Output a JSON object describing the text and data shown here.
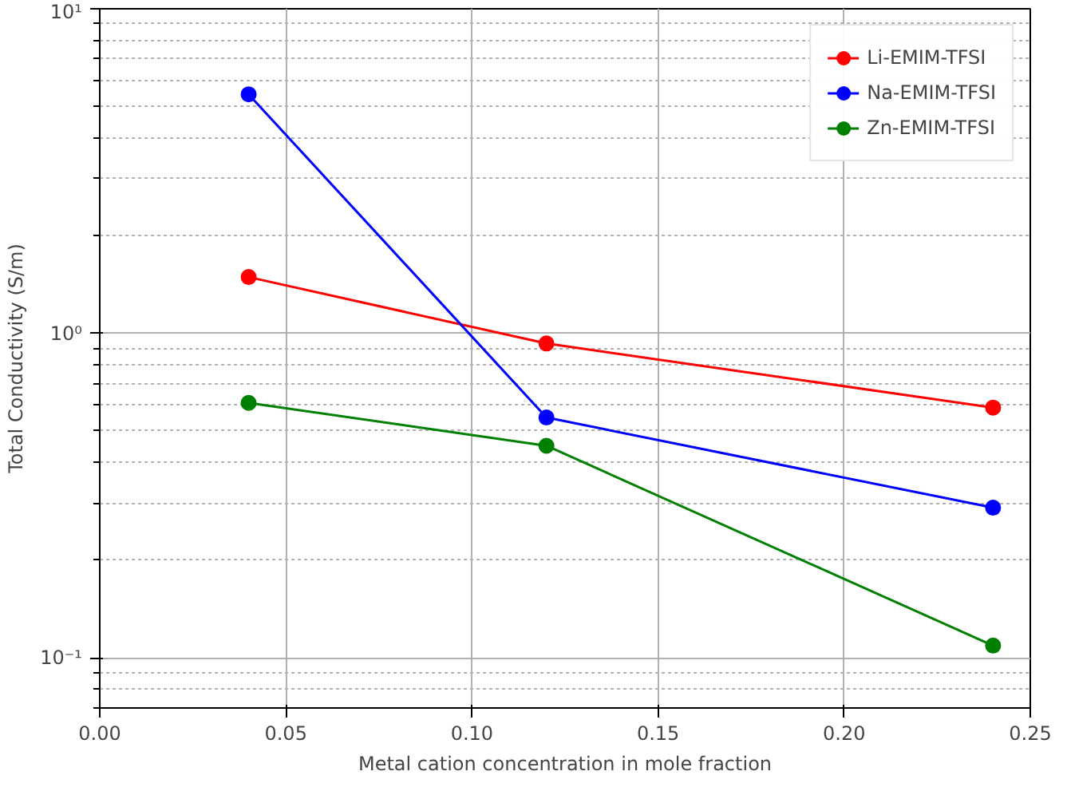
{
  "chart_data": {
    "type": "line",
    "xlabel": "Metal cation concentration in mole fraction",
    "ylabel": "Total Conductivity (S/m)",
    "x": [
      0.04,
      0.12,
      0.24
    ],
    "series": [
      {
        "name": "Li-EMIM-TFSI",
        "color": "#ff0000",
        "values": [
          1.49,
          0.93,
          0.59
        ]
      },
      {
        "name": "Na-EMIM-TFSI",
        "color": "#0000ff",
        "values": [
          5.45,
          0.55,
          0.29
        ]
      },
      {
        "name": "Zn-EMIM-TFSI",
        "color": "#008000",
        "values": [
          0.61,
          0.45,
          0.109
        ]
      }
    ],
    "xlim": [
      0.0,
      0.25
    ],
    "xticks": [
      {
        "value": 0,
        "label": "0.00"
      },
      {
        "value": 0.05,
        "label": "0.05"
      },
      {
        "value": 0.1,
        "label": "0.10"
      },
      {
        "value": 0.15,
        "label": "0.15"
      },
      {
        "value": 0.2,
        "label": "0.20"
      },
      {
        "value": 0.25,
        "label": "0.25"
      }
    ],
    "ylim": [
      0.07,
      10
    ],
    "yticks": [
      {
        "value": 0.1,
        "label": "10⁻¹"
      },
      {
        "value": 1,
        "label": "10⁰"
      },
      {
        "value": 10,
        "label": "10¹"
      }
    ],
    "log": "y",
    "grid": true,
    "legend": "top right",
    "marker": "circle",
    "line_style": "solid"
  }
}
